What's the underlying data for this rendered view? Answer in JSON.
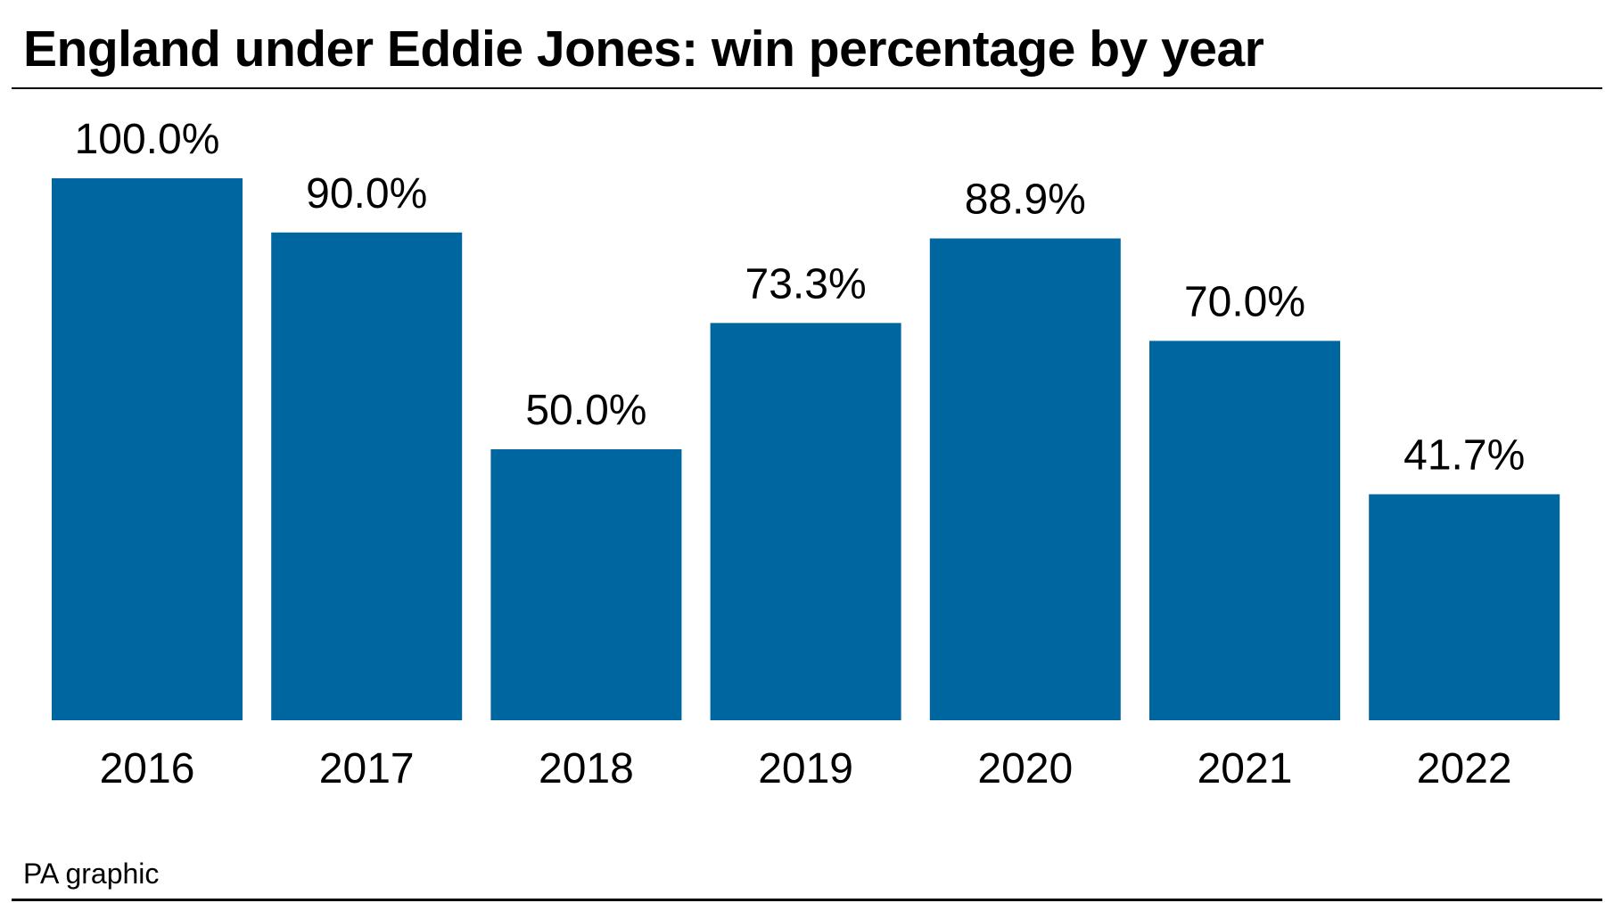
{
  "colors": {
    "bar": "#00669f",
    "text": "#000000",
    "background": "#ffffff"
  },
  "source": "PA graphic",
  "chart_data": {
    "type": "bar",
    "title": "England under Eddie Jones: win percentage by year",
    "categories": [
      "2016",
      "2017",
      "2018",
      "2019",
      "2020",
      "2021",
      "2022"
    ],
    "values": [
      100.0,
      90.0,
      50.0,
      73.3,
      88.9,
      70.0,
      41.7
    ],
    "data_labels": [
      "100.0%",
      "90.0%",
      "50.0%",
      "73.3%",
      "88.9%",
      "70.0%",
      "41.7%"
    ],
    "xlabel": "",
    "ylabel": "",
    "ylim": [
      0,
      100
    ],
    "grid": false,
    "legend": "none"
  }
}
